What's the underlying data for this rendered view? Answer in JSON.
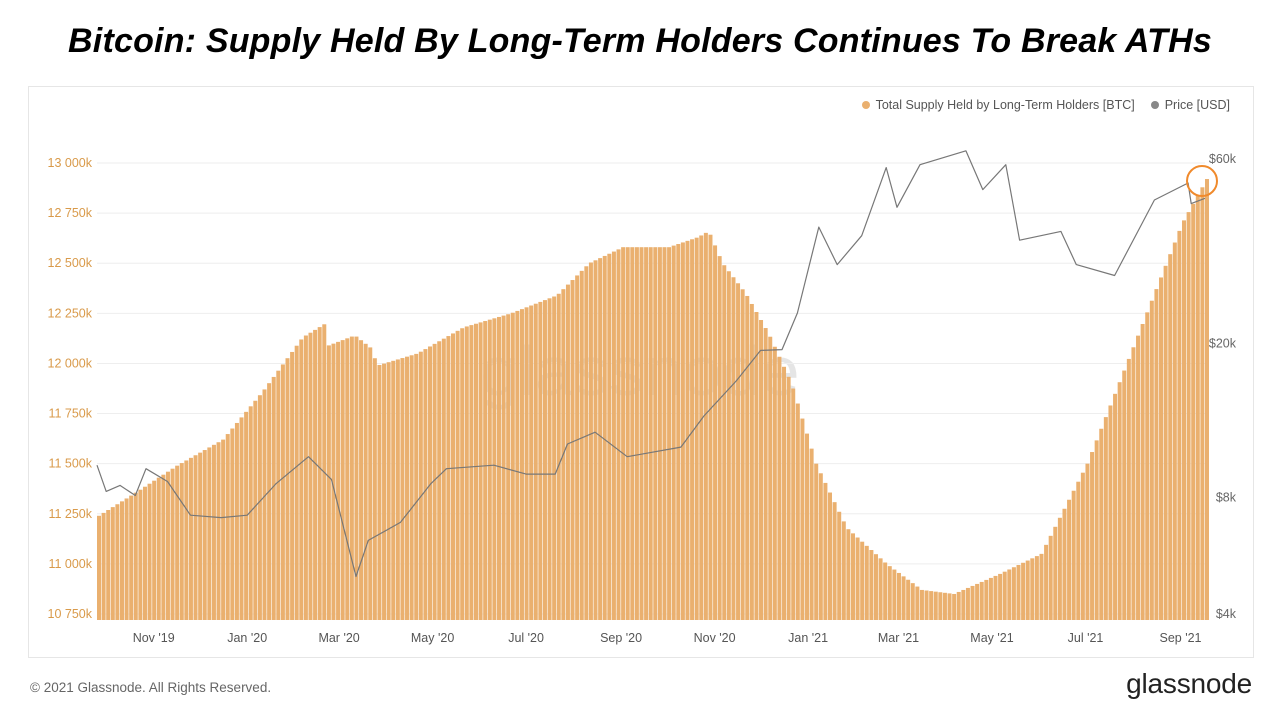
{
  "headline": "Bitcoin: Supply Held By Long-Term Holders Continues To Break ATHs",
  "watermark": "glassnode",
  "footer": {
    "copyright": "© 2021 Glassnode. All Rights Reserved.",
    "brand": "glassnode"
  },
  "colors": {
    "supply": "#eab06f",
    "price": "#888888",
    "highlight": "#f08a2c",
    "left_axis_text": "#d99a4a",
    "right_axis_text": "#666666"
  },
  "chart_data": {
    "type": "bar",
    "legend": [
      {
        "label": "Total Supply Held by Long-Term Holders [BTC]",
        "color": "#eab06f"
      },
      {
        "label": "Price [USD]",
        "color": "#888888"
      }
    ],
    "x_ticks": [
      "Nov '19",
      "Jan '20",
      "Mar '20",
      "May '20",
      "Jul '20",
      "Sep '20",
      "Nov '20",
      "Jan '21",
      "Mar '21",
      "May '21",
      "Jul '21",
      "Sep '21"
    ],
    "y_left": {
      "ticks": [
        "13 000k",
        "12 750k",
        "12 500k",
        "12 250k",
        "12 000k",
        "11 750k",
        "11 500k",
        "11 250k",
        "11 000k",
        "10 750k"
      ],
      "ylim": [
        10750000,
        13000000
      ]
    },
    "y_right": {
      "scale": "log",
      "ticks": [
        "$60k",
        "$20k",
        "$8k",
        "$4k"
      ],
      "values": [
        60000,
        20000,
        8000,
        4000
      ]
    },
    "x_range": [
      "2019-09-25",
      "2021-09-17"
    ],
    "supply_series": {
      "name": "Total Supply Held by Long-Term Holders [BTC]",
      "points": [
        [
          "2019-09-25",
          11240000
        ],
        [
          "2019-10-20",
          11360000
        ],
        [
          "2019-11-15",
          11490000
        ],
        [
          "2019-12-15",
          11620000
        ],
        [
          "2020-01-10",
          11860000
        ],
        [
          "2020-02-05",
          12130000
        ],
        [
          "2020-02-20",
          12200000
        ],
        [
          "2020-02-22",
          12090000
        ],
        [
          "2020-03-10",
          12140000
        ],
        [
          "2020-03-20",
          12080000
        ],
        [
          "2020-03-25",
          11990000
        ],
        [
          "2020-04-20",
          12050000
        ],
        [
          "2020-05-20",
          12180000
        ],
        [
          "2020-06-20",
          12250000
        ],
        [
          "2020-07-20",
          12340000
        ],
        [
          "2020-08-10",
          12500000
        ],
        [
          "2020-09-01",
          12580000
        ],
        [
          "2020-10-01",
          12580000
        ],
        [
          "2020-10-20",
          12630000
        ],
        [
          "2020-10-27",
          12660000
        ],
        [
          "2020-11-05",
          12500000
        ],
        [
          "2020-11-20",
          12350000
        ],
        [
          "2020-12-05",
          12150000
        ],
        [
          "2020-12-20",
          11900000
        ],
        [
          "2021-01-05",
          11500000
        ],
        [
          "2021-01-25",
          11180000
        ],
        [
          "2021-02-20",
          11000000
        ],
        [
          "2021-03-15",
          10870000
        ],
        [
          "2021-04-05",
          10850000
        ],
        [
          "2021-05-05",
          10950000
        ],
        [
          "2021-06-01",
          11050000
        ],
        [
          "2021-07-01",
          11500000
        ],
        [
          "2021-08-01",
          12100000
        ],
        [
          "2021-09-01",
          12700000
        ],
        [
          "2021-09-17",
          12920000
        ]
      ]
    },
    "price_series": {
      "name": "Price [USD]",
      "points": [
        [
          "2019-09-25",
          9700
        ],
        [
          "2019-10-01",
          8300
        ],
        [
          "2019-10-10",
          8600
        ],
        [
          "2019-10-20",
          8100
        ],
        [
          "2019-10-27",
          9500
        ],
        [
          "2019-11-10",
          8800
        ],
        [
          "2019-11-25",
          7200
        ],
        [
          "2019-12-15",
          7100
        ],
        [
          "2020-01-01",
          7200
        ],
        [
          "2020-01-20",
          8700
        ],
        [
          "2020-02-10",
          10200
        ],
        [
          "2020-02-25",
          8900
        ],
        [
          "2020-03-12",
          5000
        ],
        [
          "2020-03-20",
          6200
        ],
        [
          "2020-04-10",
          6900
        ],
        [
          "2020-04-30",
          8700
        ],
        [
          "2020-05-10",
          9500
        ],
        [
          "2020-06-10",
          9700
        ],
        [
          "2020-07-01",
          9200
        ],
        [
          "2020-07-20",
          9200
        ],
        [
          "2020-07-28",
          11000
        ],
        [
          "2020-08-15",
          11800
        ],
        [
          "2020-09-05",
          10200
        ],
        [
          "2020-10-10",
          10800
        ],
        [
          "2020-10-25",
          13000
        ],
        [
          "2020-11-15",
          16000
        ],
        [
          "2020-12-01",
          19200
        ],
        [
          "2020-12-15",
          19300
        ],
        [
          "2020-12-25",
          24000
        ],
        [
          "2021-01-08",
          40000
        ],
        [
          "2021-01-20",
          32000
        ],
        [
          "2021-02-05",
          38000
        ],
        [
          "2021-02-21",
          57000
        ],
        [
          "2021-02-28",
          45000
        ],
        [
          "2021-03-15",
          58000
        ],
        [
          "2021-04-14",
          63000
        ],
        [
          "2021-04-25",
          50000
        ],
        [
          "2021-05-10",
          58000
        ],
        [
          "2021-05-19",
          37000
        ],
        [
          "2021-06-15",
          39000
        ],
        [
          "2021-06-25",
          32000
        ],
        [
          "2021-07-20",
          30000
        ],
        [
          "2021-08-15",
          47000
        ],
        [
          "2021-09-06",
          52000
        ],
        [
          "2021-09-08",
          46000
        ],
        [
          "2021-09-17",
          47500
        ]
      ]
    }
  }
}
